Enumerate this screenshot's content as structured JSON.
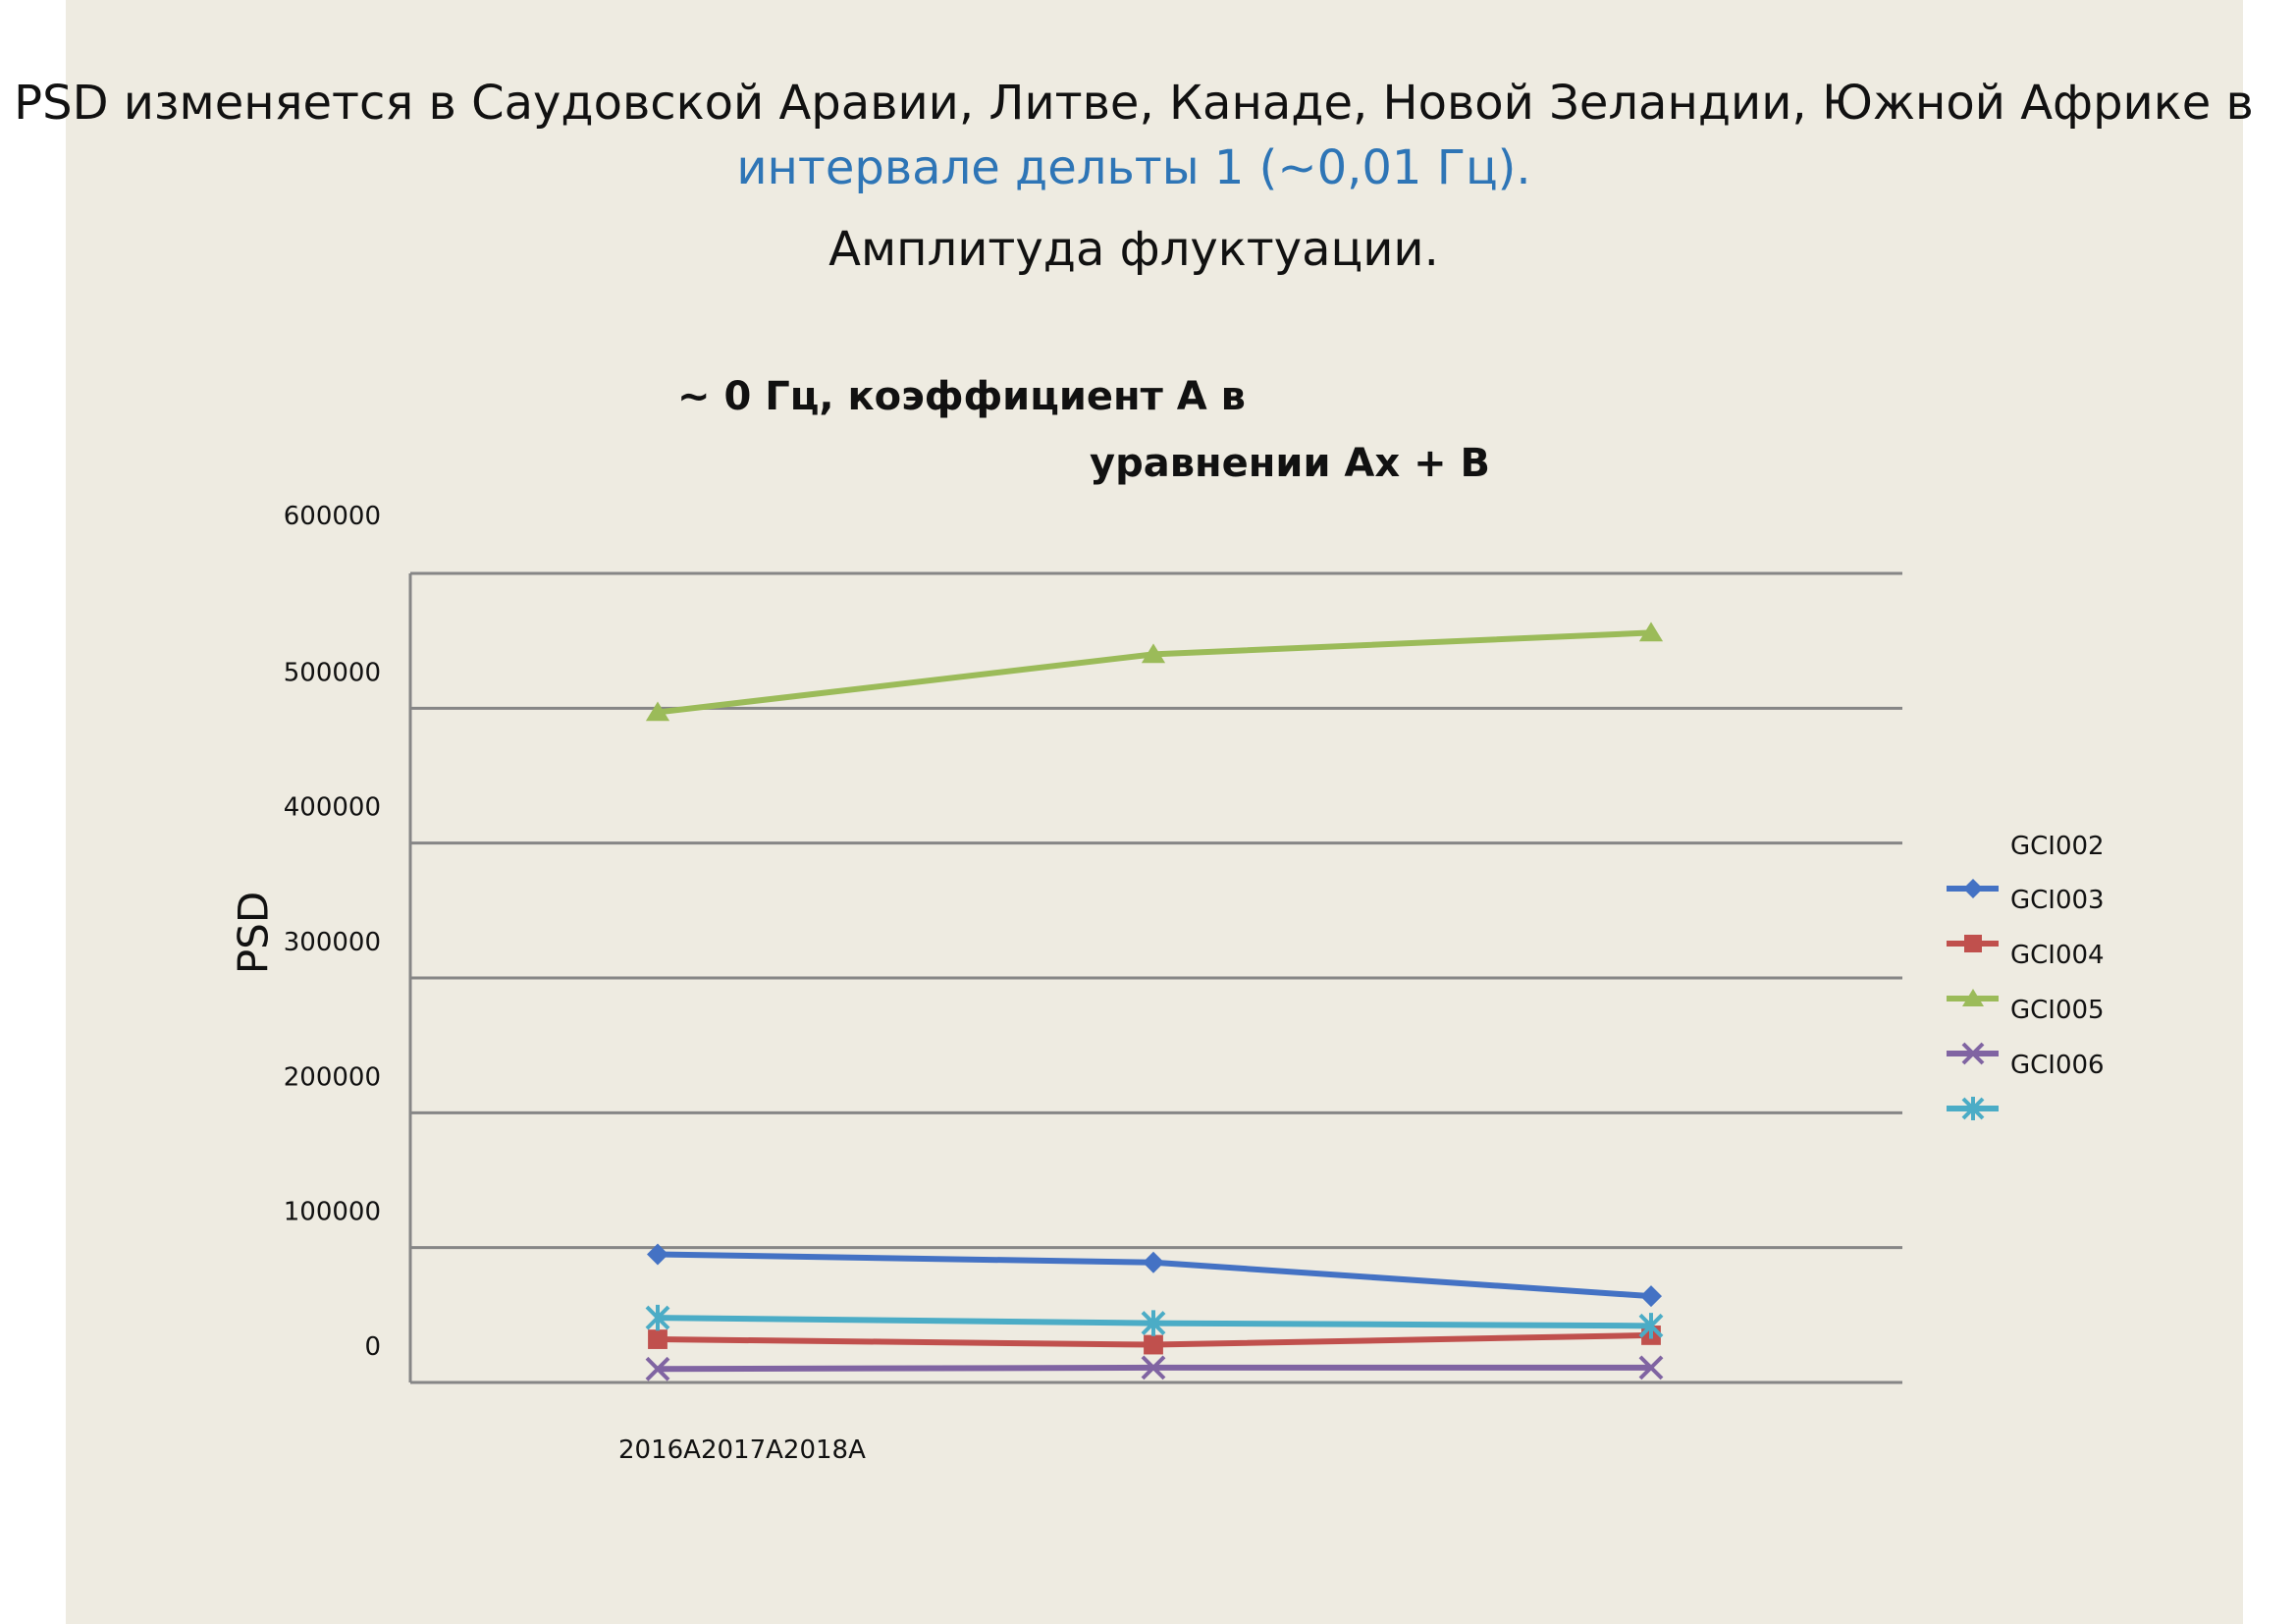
{
  "slide": {
    "heading_part1": "PSD изменяется в Саудовской Аравии, Литве, Канаде, Новой Зеландии, Южной Африке в ",
    "heading_accent": "интервале дельты 1 (~0,01 Гц).",
    "subheading": "Амплитуда флуктуации."
  },
  "chart_data": {
    "type": "line",
    "title_line1": "~ 0 Гц, коэффициент А в",
    "title_line2": "уравнении Ax + B",
    "ylabel": "PSD",
    "xlabel": "2016A2017A2018A",
    "ylim": [
      0,
      600000
    ],
    "y_ticks": [
      "0",
      "100000",
      "200000",
      "300000",
      "400000",
      "500000",
      "600000"
    ],
    "grid": true,
    "legend_position": "right",
    "legend_header": "GCI002",
    "x": [
      0,
      1,
      2
    ],
    "series": [
      {
        "name": "GCI003",
        "color": "#4472c4",
        "marker": "diamond",
        "values": [
          95000,
          89000,
          64000
        ]
      },
      {
        "name": "GCI004",
        "color": "#c0504d",
        "marker": "square",
        "values": [
          32000,
          28000,
          35000
        ]
      },
      {
        "name": "GCI005",
        "color": "#9bbb59",
        "marker": "triangle",
        "values": [
          497000,
          540000,
          556000
        ]
      },
      {
        "name": "GCI006",
        "color": "#8064a2",
        "marker": "x",
        "values": [
          10000,
          11000,
          11000
        ]
      },
      {
        "name": "",
        "color": "#4bacc6",
        "marker": "star",
        "values": [
          48000,
          44000,
          42000
        ]
      }
    ]
  }
}
